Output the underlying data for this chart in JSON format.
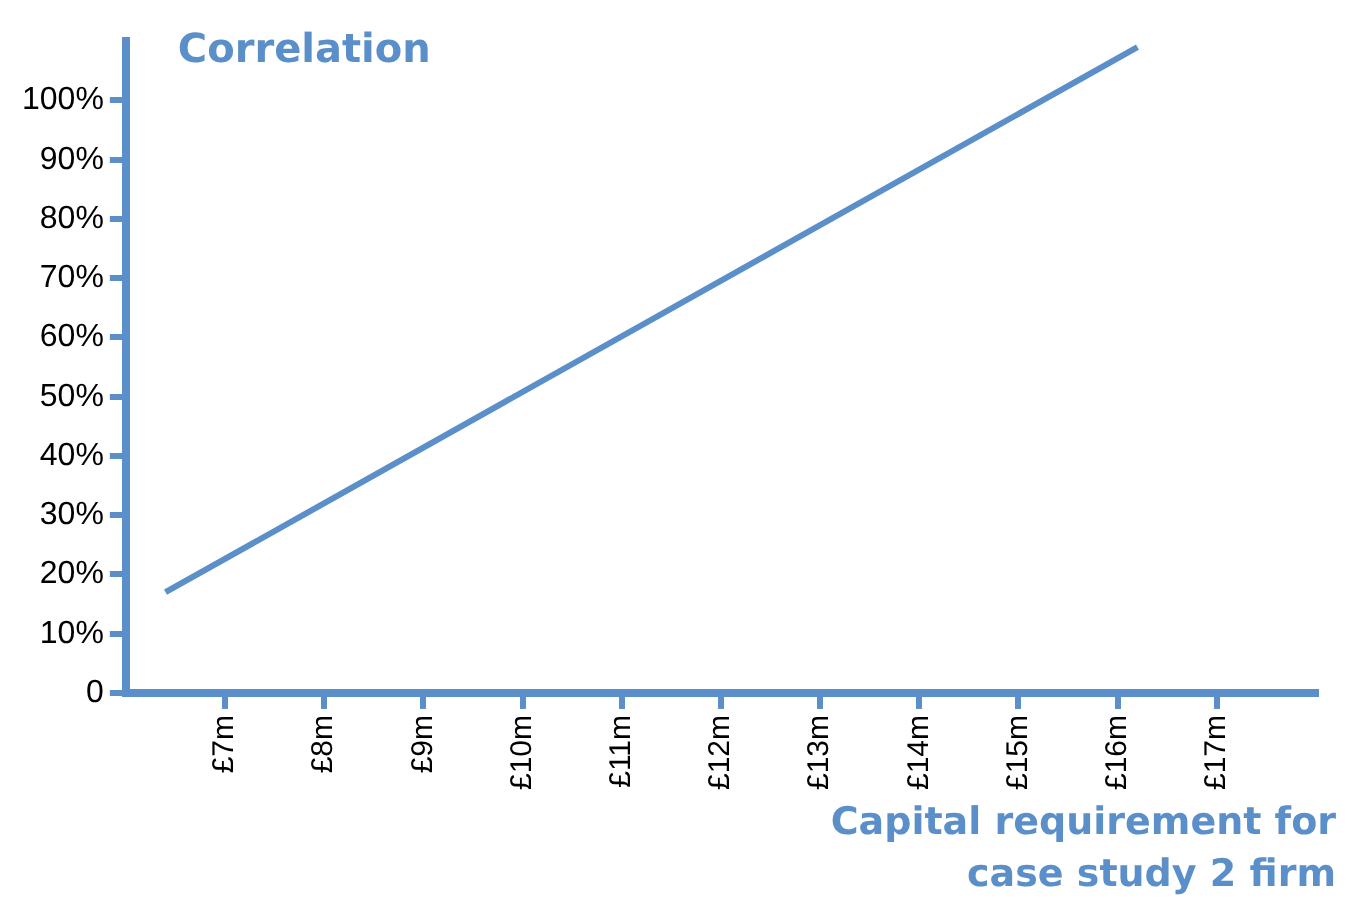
{
  "chart_data": {
    "type": "line",
    "ylabel": "Correlation",
    "xlabel": "Capital requirement for case study 2 firm",
    "series": [
      {
        "color": "#5b8fc9",
        "x": [
          6.4,
          16.2
        ],
        "values": [
          17,
          109
        ]
      }
    ],
    "xlim": [
      6,
      18
    ],
    "xticks": [
      {
        "value": 7,
        "label": "£7m"
      },
      {
        "value": 8,
        "label": "£8m"
      },
      {
        "value": 9,
        "label": "£9m"
      },
      {
        "value": 10,
        "label": "£10m"
      },
      {
        "value": 11,
        "label": "£11m"
      },
      {
        "value": 12,
        "label": "£12m"
      },
      {
        "value": 13,
        "label": "£13m"
      },
      {
        "value": 14,
        "label": "£14m"
      },
      {
        "value": 15,
        "label": "£15m"
      },
      {
        "value": 16,
        "label": "£16m"
      },
      {
        "value": 17,
        "label": "£17m"
      }
    ],
    "ylim": [
      0,
      110
    ],
    "yticks": [
      0,
      {
        "value": 10,
        "label": "10%"
      },
      {
        "value": 20,
        "label": "20%"
      },
      {
        "value": 30,
        "label": "30%"
      },
      {
        "value": 40,
        "label": "40%"
      },
      {
        "value": 50,
        "label": "50%"
      },
      {
        "value": 60,
        "label": "60%"
      },
      {
        "value": 70,
        "label": "70%"
      },
      {
        "value": 80,
        "label": "80%"
      },
      {
        "value": 90,
        "label": "90%"
      },
      {
        "value": 100,
        "label": "100%"
      }
    ],
    "grid": false,
    "legend": false,
    "marker": "none",
    "line_style": "solid"
  }
}
